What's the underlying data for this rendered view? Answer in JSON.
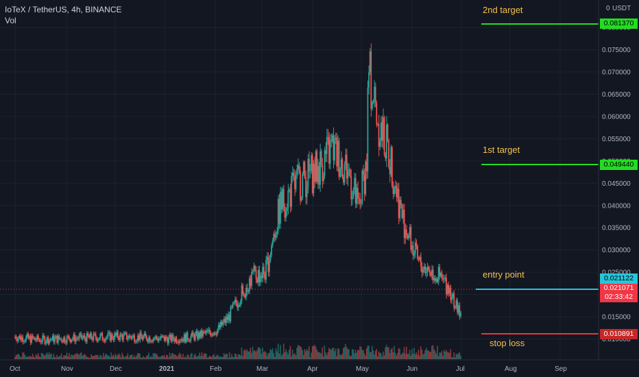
{
  "legend": {
    "symbol": "IoTeX / TetherUS, 4h, BINANCE",
    "volume": "Vol"
  },
  "price_axis": {
    "currency": "USDT",
    "top_value": "0",
    "labels": [
      "0.080000",
      "0.075000",
      "0.070000",
      "0.065000",
      "0.060000",
      "0.055000",
      "0.050000",
      "0.045000",
      "0.040000",
      "0.035000",
      "0.030000",
      "0.025000",
      "0.020000",
      "0.015000",
      "0.010000"
    ]
  },
  "time_axis": {
    "labels": [
      "Oct",
      "Nov",
      "Dec",
      "2021",
      "Feb",
      "Mar",
      "Apr",
      "May",
      "Jun",
      "Jul",
      "Aug",
      "Sep"
    ]
  },
  "annotations": [
    {
      "id": "target2",
      "text": "2nd target",
      "price": 0.08137,
      "tag": "0.081370",
      "color": "#22dd22"
    },
    {
      "id": "target1",
      "text": "1st target",
      "price": 0.04944,
      "tag": "0.049440",
      "color": "#22dd22"
    },
    {
      "id": "entry",
      "text": "entry point",
      "price": 0.021122,
      "tag": "0.021122",
      "color": "#26c6da"
    },
    {
      "id": "stop",
      "text": "stop loss",
      "price": 0.010891,
      "tag": "0.010891",
      "color": "#e53935"
    }
  ],
  "last_price": {
    "value": "0.021071",
    "countdown": "02:33:42",
    "color": "#f23645"
  },
  "colors": {
    "up": "#26a69a",
    "down": "#ef5350",
    "annotation_text": "#f6c14d"
  },
  "chart_data": {
    "type": "line",
    "title": "IoTeX / TetherUS, 4h, BINANCE",
    "ylabel": "USDT",
    "ylim": [
      0.0085,
      0.0865
    ],
    "x": [
      "2020-10-01",
      "2020-10-15",
      "2020-11-01",
      "2020-11-15",
      "2020-12-01",
      "2020-12-15",
      "2021-01-01",
      "2021-01-10",
      "2021-01-20",
      "2021-01-31",
      "2021-02-07",
      "2021-02-14",
      "2021-02-21",
      "2021-03-01",
      "2021-03-10",
      "2021-03-20",
      "2021-04-01",
      "2021-04-10",
      "2021-04-20",
      "2021-04-26",
      "2021-05-01",
      "2021-05-02",
      "2021-05-08",
      "2021-05-15",
      "2021-05-22",
      "2021-06-01",
      "2021-06-10",
      "2021-06-20",
      "2021-06-25",
      "2021-07-01",
      "2021-07-04"
    ],
    "series": [
      {
        "values": [
          0.0105,
          0.0098,
          0.0101,
          0.0103,
          0.0106,
          0.0104,
          0.01,
          0.0102,
          0.0108,
          0.012,
          0.015,
          0.02,
          0.024,
          0.025,
          0.04,
          0.045,
          0.048,
          0.053,
          0.048,
          0.039,
          0.05,
          0.07,
          0.059,
          0.051,
          0.038,
          0.027,
          0.025,
          0.0215,
          0.016,
          0.017,
          0.0215
        ]
      }
    ]
  }
}
